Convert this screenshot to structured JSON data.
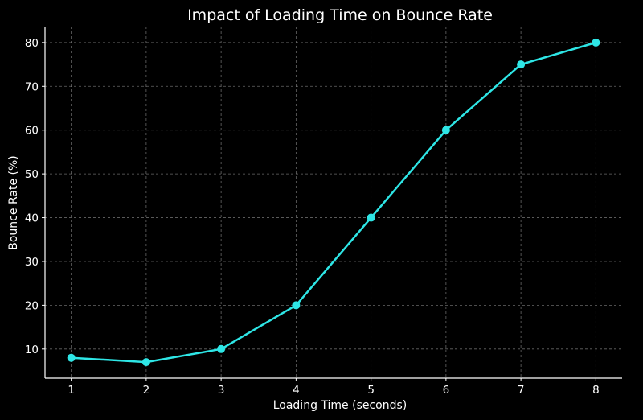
{
  "chart_data": {
    "type": "line",
    "title": "Impact of Loading Time on Bounce Rate",
    "xlabel": "Loading Time (seconds)",
    "ylabel": "Bounce Rate (%)",
    "x": [
      1,
      2,
      3,
      4,
      5,
      6,
      7,
      8
    ],
    "series": [
      {
        "values": [
          8,
          7,
          10,
          20,
          40,
          60,
          75,
          80
        ]
      }
    ],
    "x_ticks": [
      "1",
      "2",
      "3",
      "4",
      "5",
      "6",
      "7",
      "8"
    ],
    "y_ticks": [
      "10",
      "20",
      "30",
      "40",
      "50",
      "60",
      "70",
      "80"
    ],
    "xlim": [
      0.65,
      8.35
    ],
    "ylim": [
      3.35,
      83.65
    ],
    "grid": true,
    "colors": {
      "line": "#2ee6e6",
      "background": "#000000",
      "text": "#ffffff",
      "grid": "#8a8a8a"
    }
  }
}
